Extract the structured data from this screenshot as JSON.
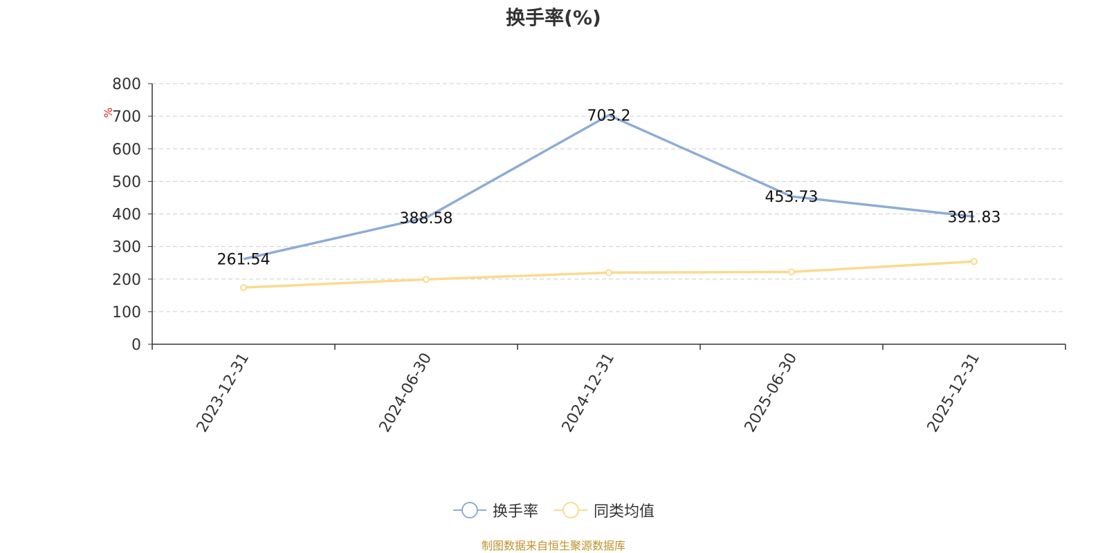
{
  "chart_data": {
    "type": "line",
    "title": "换手率(%)",
    "ylabel": "%",
    "ylim": [
      0,
      800
    ],
    "yticks": [
      0,
      100,
      200,
      300,
      400,
      500,
      600,
      700,
      800
    ],
    "categories": [
      "2023-12-31",
      "2024-06-30",
      "2024-12-31",
      "2025-06-30",
      "2025-12-31"
    ],
    "grid": true,
    "legend_position": "bottom",
    "series": [
      {
        "name": "换手率",
        "values": [
          261.54,
          388.58,
          703.2,
          453.73,
          391.83
        ],
        "data_labels": [
          "261.54",
          "388.58",
          "703.2",
          "453.73",
          "391.83"
        ],
        "color": "#8eabd6"
      },
      {
        "name": "同类均值",
        "values": [
          174,
          199,
          220,
          222,
          254
        ],
        "color": "#fcd98f"
      }
    ]
  },
  "source_note": "制图数据来自恒生聚源数据库"
}
